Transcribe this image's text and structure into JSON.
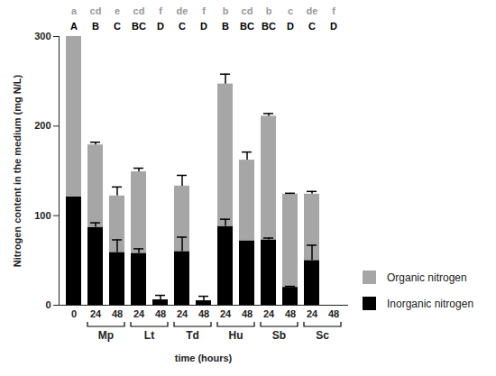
{
  "chart_data": {
    "type": "bar",
    "stacked": true,
    "xlabel": "time (hours)",
    "ylabel": "Nitrogen content in the medium (mg N/L)",
    "categories": [
      "0",
      "24",
      "48",
      "24",
      "48",
      "24",
      "48",
      "24",
      "48",
      "24",
      "48",
      "24",
      "48"
    ],
    "groups": [
      null,
      "Mp",
      "Mp",
      "Lt",
      "Lt",
      "Td",
      "Td",
      "Hu",
      "Hu",
      "Sb",
      "Sb",
      "Sc",
      "Sc"
    ],
    "series": [
      {
        "name": "Inorganic nitrogen",
        "color": "#000000",
        "values": [
          121,
          87,
          59,
          58,
          6,
          60,
          5,
          88,
          72,
          73,
          20,
          50,
          0
        ],
        "errors": [
          0,
          5,
          14,
          5,
          5,
          16,
          5,
          8,
          0,
          2,
          1,
          17,
          0
        ]
      },
      {
        "name": "Organic nitrogen",
        "color": "#a6a6a6",
        "values": [
          179,
          92,
          63,
          91,
          0,
          73,
          0,
          159,
          90,
          138,
          104,
          74,
          0
        ],
        "errors": [
          0,
          3,
          10,
          4,
          0,
          12,
          0,
          11,
          9,
          3,
          1,
          3,
          0
        ]
      }
    ],
    "significance_letters": [
      {
        "color": "#999999",
        "labels": [
          "a",
          "cd",
          "e",
          "cd",
          "f",
          "de",
          "f",
          "b",
          "cd",
          "b",
          "c",
          "de",
          "f"
        ]
      },
      {
        "color": "#000000",
        "labels": [
          "A",
          "B",
          "C",
          "BC",
          "D",
          "C",
          "D",
          "B",
          "BC",
          "BC",
          "D",
          "C",
          "D"
        ]
      }
    ],
    "ylim": [
      0,
      300
    ],
    "yticks": [
      0,
      100,
      200,
      300
    ],
    "legend": "right"
  }
}
